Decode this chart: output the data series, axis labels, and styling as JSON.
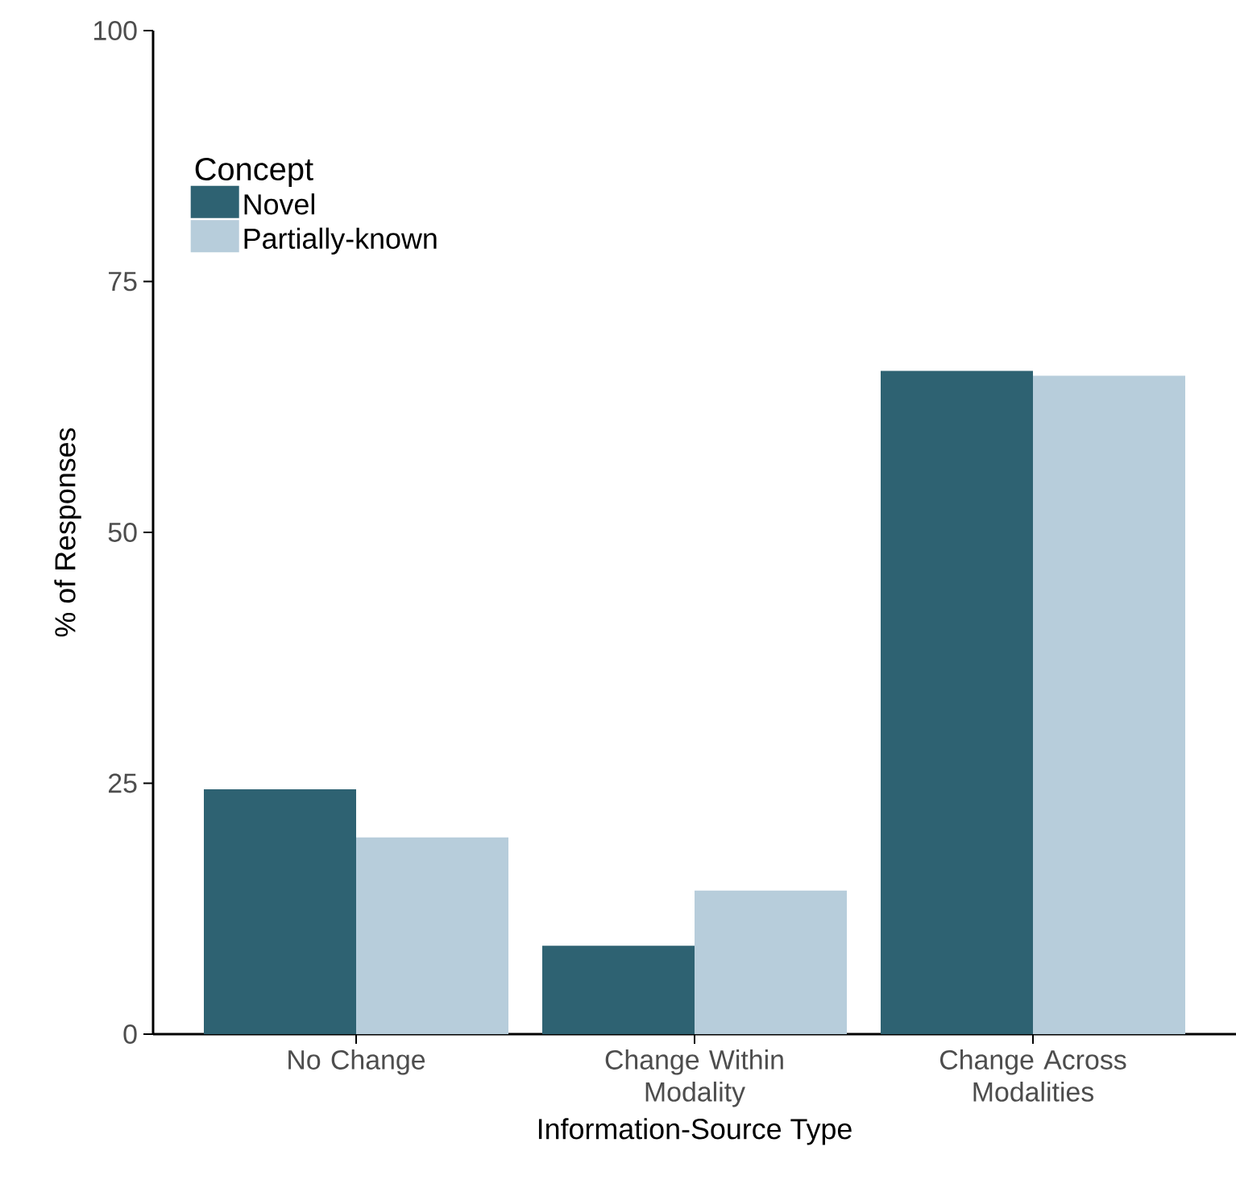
{
  "chart_data": {
    "type": "bar",
    "xlabel": "Information-Source Type",
    "ylabel": "% of Responses",
    "legend_title": "Concept",
    "legend": "top left",
    "categories": [
      "No Change",
      "Change Within Modality",
      "Change Across Modalities"
    ],
    "series": [
      {
        "name": "Novel",
        "color": "#2e6272",
        "values": [
          24.4,
          8.8,
          66.1
        ]
      },
      {
        "name": "Partially-known",
        "color": "#b7cddb",
        "values": [
          19.6,
          14.3,
          65.6
        ]
      }
    ],
    "ylim": [
      0,
      100
    ],
    "yticks": [
      0,
      25,
      50,
      75,
      100
    ]
  }
}
